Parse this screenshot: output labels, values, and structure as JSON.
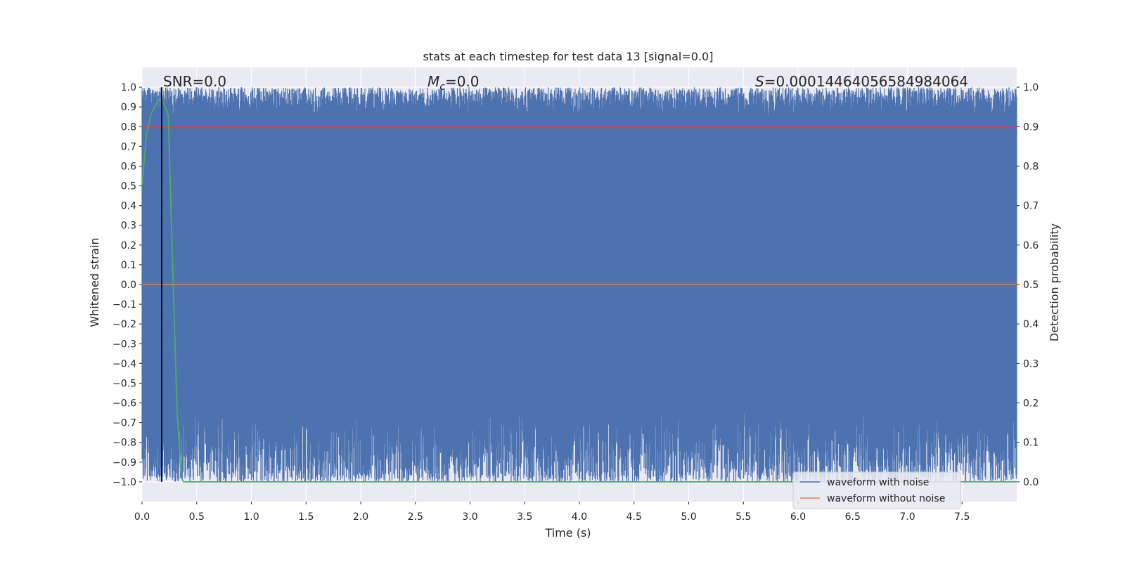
{
  "chart_data": {
    "type": "line",
    "title": "stats at each timestep for test data 13 [signal=0.0]",
    "xlabel": "Time (s)",
    "ylabel_left": "Whitened strain",
    "ylabel_right": "Detection probability",
    "xlim": [
      0.0,
      8.0
    ],
    "ylim_left": [
      -1.1,
      1.1
    ],
    "ylim_right": [
      -0.05,
      1.05
    ],
    "x_ticks": [
      0.0,
      0.5,
      1.0,
      1.5,
      2.0,
      2.5,
      3.0,
      3.5,
      4.0,
      4.5,
      5.0,
      5.5,
      6.0,
      6.5,
      7.0,
      7.5
    ],
    "x_tick_labels": [
      "0.0",
      "0.5",
      "1.0",
      "1.5",
      "2.0",
      "2.5",
      "3.0",
      "3.5",
      "4.0",
      "4.5",
      "5.0",
      "5.5",
      "6.0",
      "6.5",
      "7.0",
      "7.5"
    ],
    "y_left_ticks": [
      1.0,
      0.9,
      0.8,
      0.7,
      0.6,
      0.5,
      0.4,
      0.3,
      0.2,
      0.1,
      0.0,
      -0.1,
      -0.2,
      -0.3,
      -0.4,
      -0.5,
      -0.6,
      -0.7,
      -0.8,
      -0.9,
      -1.0
    ],
    "y_left_tick_labels": [
      "1.0",
      "0.9",
      "0.8",
      "0.7",
      "0.6",
      "0.5",
      "0.4",
      "0.3",
      "0.2",
      "0.1",
      "0.0",
      "−0.1",
      "−0.2",
      "−0.3",
      "−0.4",
      "−0.5",
      "−0.6",
      "−0.7",
      "−0.8",
      "−0.9",
      "−1.0"
    ],
    "y_right_ticks": [
      1.0,
      0.9,
      0.8,
      0.7,
      0.6,
      0.5,
      0.4,
      0.3,
      0.2,
      0.1,
      0.0
    ],
    "y_right_tick_labels": [
      "1.0",
      "0.9",
      "0.8",
      "0.7",
      "0.6",
      "0.5",
      "0.4",
      "0.3",
      "0.2",
      "0.1",
      "0.0"
    ],
    "annotations": {
      "snr": "SNR=0.0",
      "mc_symbol": "M",
      "mc_sub": "c",
      "mc_value": "=0.0",
      "s_symbol": "S",
      "s_value": "=0.00014464056584984064"
    },
    "series": [
      {
        "name": "waveform with noise",
        "axis": "left",
        "color": "#4c72b0",
        "description": "dense whitened noise filling approx -1.0 to 1.0 across 0-8 s",
        "upper_range": [
          0.85,
          1.0
        ],
        "lower_range": [
          -1.0,
          -0.65
        ]
      },
      {
        "name": "waveform without noise",
        "axis": "left",
        "color": "#dd8452",
        "x": [
          0.0,
          8.0
        ],
        "y": [
          0.0,
          0.0
        ]
      },
      {
        "name": "detection probability",
        "axis": "right",
        "color": "#55a868",
        "x": [
          0.0,
          0.04,
          0.08,
          0.12,
          0.16,
          0.2,
          0.24,
          0.28,
          0.32,
          0.36,
          0.38,
          0.5,
          1.0,
          2.0,
          4.0,
          6.0,
          8.0
        ],
        "y": [
          0.75,
          0.88,
          0.93,
          0.955,
          0.97,
          0.96,
          0.93,
          0.55,
          0.18,
          0.01,
          0.0,
          0.0,
          0.0,
          0.0,
          0.0,
          0.0,
          0.0
        ]
      }
    ],
    "threshold_line": {
      "axis": "right",
      "value": 0.9,
      "color": "#c44e52"
    },
    "vertical_marker": {
      "x": 0.18,
      "color": "#000000"
    },
    "legend": {
      "placement": "lower-right",
      "entries": [
        "waveform with noise",
        "waveform without noise"
      ]
    }
  }
}
